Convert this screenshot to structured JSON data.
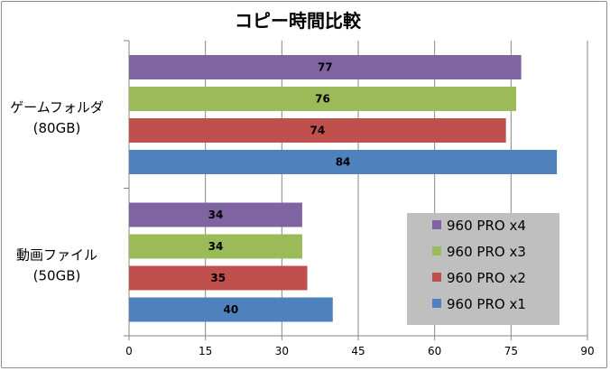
{
  "chart_data": {
    "type": "bar",
    "orientation": "horizontal",
    "title": "コピー時間比較",
    "categories": [
      {
        "line1": "ゲームフォルダ",
        "line2": "(80GB)"
      },
      {
        "line1": "動画ファイル",
        "line2": "(50GB)"
      }
    ],
    "series": [
      {
        "name": "960 PRO x4",
        "color": "#8064a2",
        "values": [
          77,
          34
        ]
      },
      {
        "name": "960 PRO x3",
        "color": "#9bbb59",
        "values": [
          76,
          34
        ]
      },
      {
        "name": "960 PRO x2",
        "color": "#c0504d",
        "values": [
          74,
          35
        ]
      },
      {
        "name": "960 PRO x1",
        "color": "#4f81bd",
        "values": [
          84,
          40
        ]
      }
    ],
    "xlim": [
      0,
      90
    ],
    "xticks": [
      "0",
      "15",
      "30",
      "45",
      "60",
      "75",
      "90"
    ],
    "grid": "vertical",
    "legend": {
      "placement": "bottom-right",
      "background": "#bfbfbf",
      "order": [
        "960 PRO x4",
        "960 PRO x3",
        "960 PRO x2",
        "960 PRO x1"
      ]
    }
  }
}
